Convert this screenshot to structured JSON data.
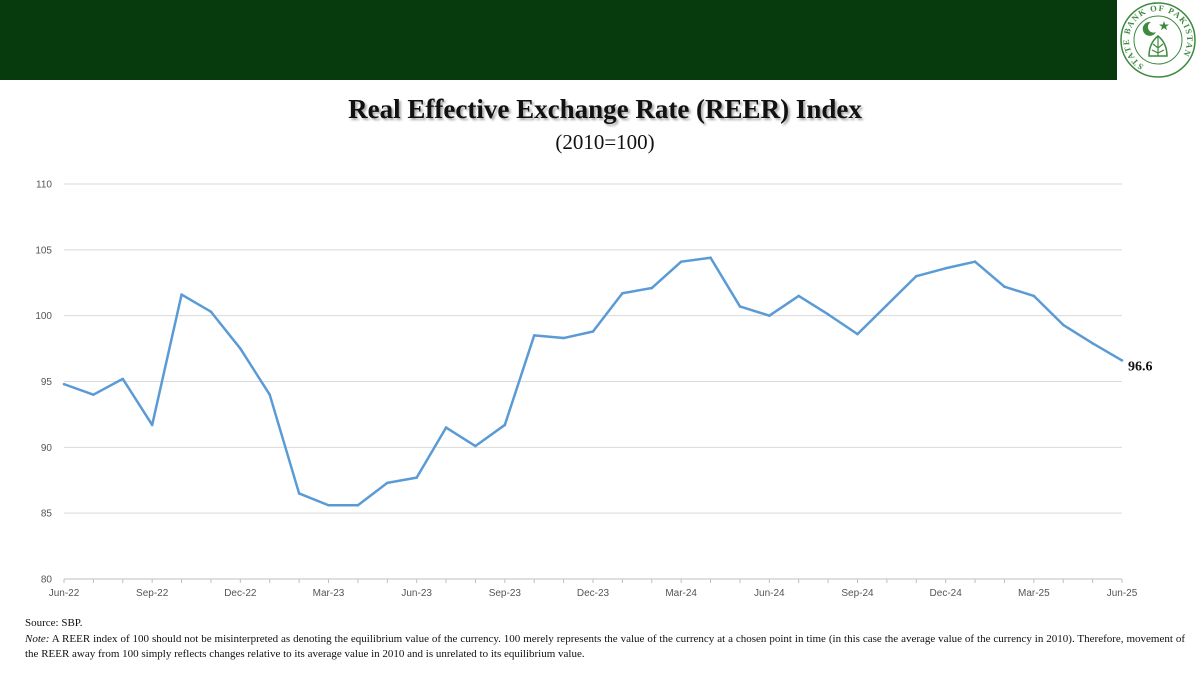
{
  "header": {
    "logo_text": "STATE BANK OF PAKISTAN",
    "logo_colors": {
      "ring": "#3d8a3f",
      "band": "#073a0c"
    }
  },
  "footer": {
    "source": "Source: SBP.",
    "note_label": "Note:",
    "note_text": " A REER index of 100 should not be misinterpreted as denoting the equilibrium value of the currency. 100 merely represents the value of the currency at a chosen point in time (in this case the average value of the currency in 2010). Therefore, movement of the REER away from 100 simply reflects changes relative to its average value in 2010 and is unrelated to its equilibrium value."
  },
  "chart_data": {
    "type": "line",
    "title": "Real Effective Exchange Rate (REER) Index",
    "subtitle": "(2010=100)",
    "xlabel": "",
    "ylabel": "",
    "ylim": [
      80,
      110
    ],
    "yticks": [
      80,
      85,
      90,
      95,
      100,
      105,
      110
    ],
    "grid": true,
    "line_color": "#5b9bd5",
    "x": [
      "Jun-22",
      "Jul-22",
      "Aug-22",
      "Sep-22",
      "Oct-22",
      "Nov-22",
      "Dec-22",
      "Jan-23",
      "Feb-23",
      "Mar-23",
      "Apr-23",
      "May-23",
      "Jun-23",
      "Jul-23",
      "Aug-23",
      "Sep-23",
      "Oct-23",
      "Nov-23",
      "Dec-23",
      "Jan-24",
      "Feb-24",
      "Mar-24",
      "Apr-24",
      "May-24",
      "Jun-24",
      "Jul-24",
      "Aug-24",
      "Sep-24",
      "Oct-24",
      "Nov-24",
      "Dec-24",
      "Jan-25",
      "Feb-25",
      "Mar-25",
      "Apr-25",
      "May-25",
      "Jun-25"
    ],
    "x_tick_labels": [
      "Jun-22",
      "Sep-22",
      "Dec-22",
      "Mar-23",
      "Jun-23",
      "Sep-23",
      "Dec-23",
      "Mar-24",
      "Jun-24",
      "Sep-24",
      "Dec-24",
      "Mar-25",
      "Jun-25"
    ],
    "series": [
      {
        "values": [
          94.8,
          94.0,
          95.2,
          91.7,
          101.6,
          100.3,
          97.5,
          94.0,
          86.5,
          85.6,
          85.6,
          87.3,
          87.7,
          91.5,
          90.1,
          91.7,
          98.5,
          98.3,
          98.8,
          101.7,
          102.1,
          104.1,
          104.4,
          100.7,
          100.0,
          101.5,
          100.1,
          98.6,
          100.8,
          103.0,
          103.6,
          104.1,
          102.2,
          101.5,
          99.3,
          97.9,
          96.6
        ]
      }
    ],
    "end_label": "96.6"
  }
}
